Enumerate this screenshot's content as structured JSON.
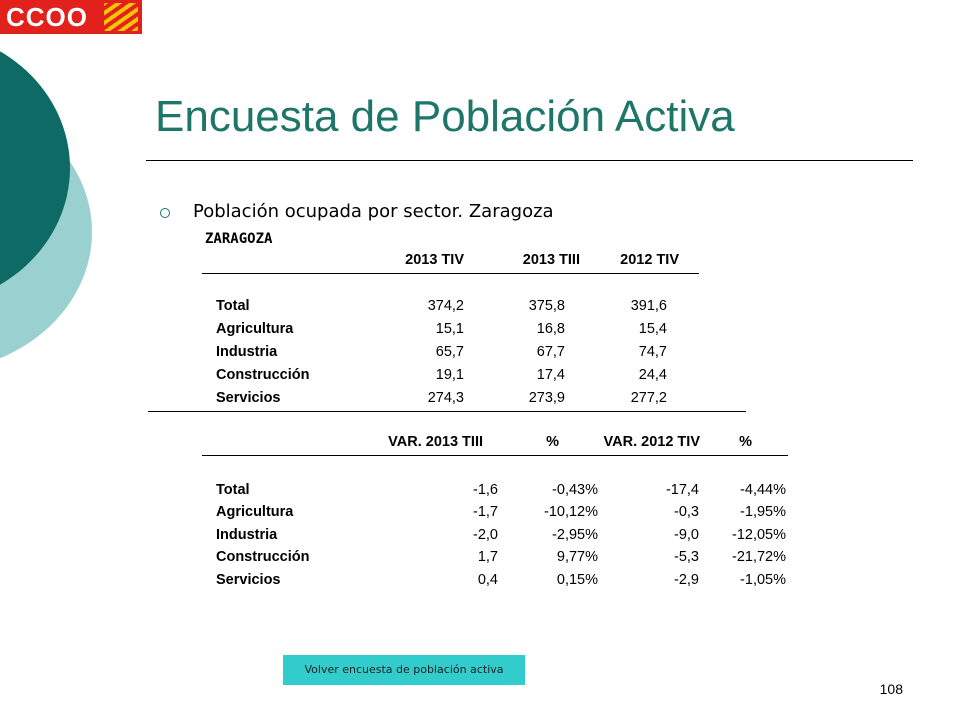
{
  "logo": {
    "text": "CCOO"
  },
  "slide": {
    "title": "Encuesta de Población Activa",
    "bullet": "Población ocupada por sector. Zaragoza",
    "region": "ZARAGOZA",
    "page_number": "108"
  },
  "table_levels": {
    "headers": [
      "2013 TIV",
      "2013 TIII",
      "2012 TIV"
    ],
    "rows": [
      {
        "label": "Total",
        "values": [
          "374,2",
          "375,8",
          "391,6"
        ]
      },
      {
        "label": "Agricultura",
        "values": [
          "15,1",
          "16,8",
          "15,4"
        ]
      },
      {
        "label": "Industria",
        "values": [
          "65,7",
          "67,7",
          "74,7"
        ]
      },
      {
        "label": "Construcción",
        "values": [
          "19,1",
          "17,4",
          "24,4"
        ]
      },
      {
        "label": "Servicios",
        "values": [
          "274,3",
          "273,9",
          "277,2"
        ]
      }
    ]
  },
  "table_variation": {
    "headers": [
      "VAR. 2013 TIII",
      "%",
      "VAR. 2012 TIV",
      "%"
    ],
    "rows": [
      {
        "label": "Total",
        "values": [
          "-1,6",
          "-0,43%",
          "-17,4",
          "-4,44%"
        ]
      },
      {
        "label": "Agricultura",
        "values": [
          "-1,7",
          "-10,12%",
          "-0,3",
          "-1,95%"
        ]
      },
      {
        "label": "Industria",
        "values": [
          "-2,0",
          "-2,95%",
          "-9,0",
          "-12,05%"
        ]
      },
      {
        "label": "Construcción",
        "values": [
          "1,7",
          "9,77%",
          "-5,3",
          "-21,72%"
        ]
      },
      {
        "label": "Servicios",
        "values": [
          "0,4",
          "0,15%",
          "-2,9",
          "-1,05%"
        ]
      }
    ]
  },
  "footer": {
    "back_link": "Volver encuesta de población activa"
  },
  "colors": {
    "title": "#1e7668",
    "dark_teal": "#0d6a64",
    "light_teal": "#9ad0d0",
    "link_bg": "#33cccc",
    "logo_red": "#e2211c"
  }
}
